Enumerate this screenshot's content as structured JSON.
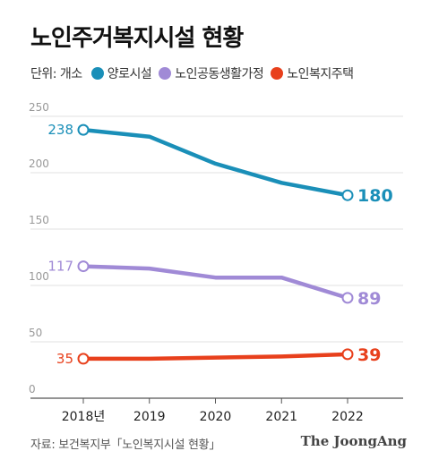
{
  "title": "노인주거복지시설 현황",
  "unit": "단위: 개소",
  "source": "자료: 보건복지부「노인복지시설 현황」",
  "brand": "The JoongAng",
  "chart_data": {
    "type": "line",
    "title": "노인주거복지시설 현황",
    "unit": "단위: 개소",
    "categories": [
      "2018년",
      "2019",
      "2020",
      "2021",
      "2022"
    ],
    "ylim": [
      0,
      250
    ],
    "yticks": [
      0,
      50,
      100,
      150,
      200,
      250
    ],
    "grid": true,
    "legend_position": "top",
    "series": [
      {
        "name": "양로시설",
        "color": "#1a8fb8",
        "values": [
          238,
          232,
          208,
          191,
          180
        ],
        "start_label": "238",
        "end_label": "180"
      },
      {
        "name": "노인공동생활가정",
        "color": "#a08ad6",
        "values": [
          117,
          115,
          107,
          107,
          89
        ],
        "start_label": "117",
        "end_label": "89"
      },
      {
        "name": "노인복지주택",
        "color": "#e8401c",
        "values": [
          35,
          35,
          36,
          37,
          39
        ],
        "start_label": "35",
        "end_label": "39"
      }
    ]
  }
}
